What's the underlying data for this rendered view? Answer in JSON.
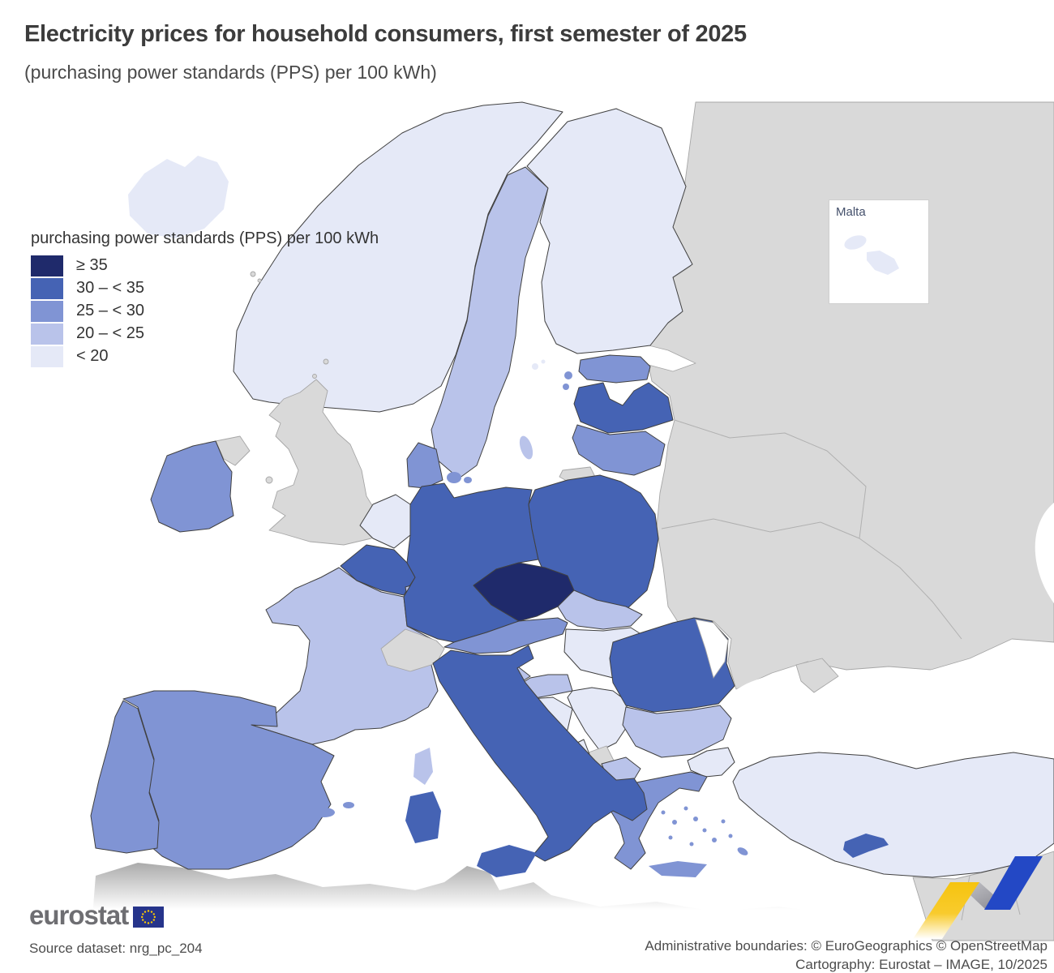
{
  "header": {
    "title": "Electricity prices for household consumers, first semester of 2025",
    "subtitle": "(purchasing power standards (PPS) per 100 kWh)"
  },
  "legend": {
    "title": "purchasing power standards (PPS) per 100 kWh",
    "classes": [
      {
        "label": "≥ 35",
        "color": "#1f2a6b"
      },
      {
        "label": "30 – < 35",
        "color": "#4563b4"
      },
      {
        "label": "25 – < 30",
        "color": "#8094d4"
      },
      {
        "label": "20 – < 25",
        "color": "#b9c3ea"
      },
      {
        "label": "< 20",
        "color": "#e5e9f7"
      }
    ],
    "no_data_color": "#d9d9d9"
  },
  "inset": {
    "label": "Malta"
  },
  "map_data": {
    "unit": "PPS per 100 kWh",
    "countries": [
      {
        "code": "CZ",
        "name": "Czechia",
        "class": 0
      },
      {
        "code": "DE",
        "name": "Germany",
        "class": 1
      },
      {
        "code": "PL",
        "name": "Poland",
        "class": 1
      },
      {
        "code": "BE",
        "name": "Belgium",
        "class": 1
      },
      {
        "code": "IT",
        "name": "Italy",
        "class": 1
      },
      {
        "code": "LV",
        "name": "Latvia",
        "class": 1
      },
      {
        "code": "RO",
        "name": "Romania",
        "class": 1
      },
      {
        "code": "CY",
        "name": "Cyprus",
        "class": 1
      },
      {
        "code": "ES",
        "name": "Spain",
        "class": 2
      },
      {
        "code": "PT",
        "name": "Portugal",
        "class": 2
      },
      {
        "code": "IE",
        "name": "Ireland",
        "class": 2
      },
      {
        "code": "DK",
        "name": "Denmark",
        "class": 2
      },
      {
        "code": "EE",
        "name": "Estonia",
        "class": 2
      },
      {
        "code": "LT",
        "name": "Lithuania",
        "class": 2
      },
      {
        "code": "AT",
        "name": "Austria",
        "class": 2
      },
      {
        "code": "EL",
        "name": "Greece",
        "class": 2
      },
      {
        "code": "FR",
        "name": "France",
        "class": 3
      },
      {
        "code": "SE",
        "name": "Sweden",
        "class": 3
      },
      {
        "code": "LU",
        "name": "Luxembourg",
        "class": 3
      },
      {
        "code": "SK",
        "name": "Slovakia",
        "class": 3
      },
      {
        "code": "SI",
        "name": "Slovenia",
        "class": 3
      },
      {
        "code": "HR",
        "name": "Croatia",
        "class": 3
      },
      {
        "code": "BG",
        "name": "Bulgaria",
        "class": 3
      },
      {
        "code": "MK",
        "name": "North Macedonia",
        "class": 3
      },
      {
        "code": "IS",
        "name": "Iceland",
        "class": 4
      },
      {
        "code": "NO",
        "name": "Norway",
        "class": 4
      },
      {
        "code": "FI",
        "name": "Finland",
        "class": 4
      },
      {
        "code": "NL",
        "name": "Netherlands",
        "class": 4
      },
      {
        "code": "HU",
        "name": "Hungary",
        "class": 4
      },
      {
        "code": "BA",
        "name": "Bosnia and Herzegovina",
        "class": 4
      },
      {
        "code": "RS",
        "name": "Serbia",
        "class": 4
      },
      {
        "code": "ME",
        "name": "Montenegro",
        "class": 4
      },
      {
        "code": "AL",
        "name": "Albania",
        "class": 4
      },
      {
        "code": "TR",
        "name": "Türkiye",
        "class": 4
      },
      {
        "code": "MT",
        "name": "Malta",
        "class": 4
      }
    ],
    "no_data": [
      "United Kingdom",
      "Switzerland",
      "Ukraine",
      "Belarus",
      "Russia",
      "Moldova",
      "Kosovo"
    ]
  },
  "footer": {
    "logo_text": "eurostat",
    "source": "Source dataset: nrg_pc_204",
    "attribution_line1": "Administrative boundaries: © EuroGeographics © OpenStreetMap",
    "attribution_line2": "Cartography: Eurostat – IMAGE, 10/2025"
  }
}
